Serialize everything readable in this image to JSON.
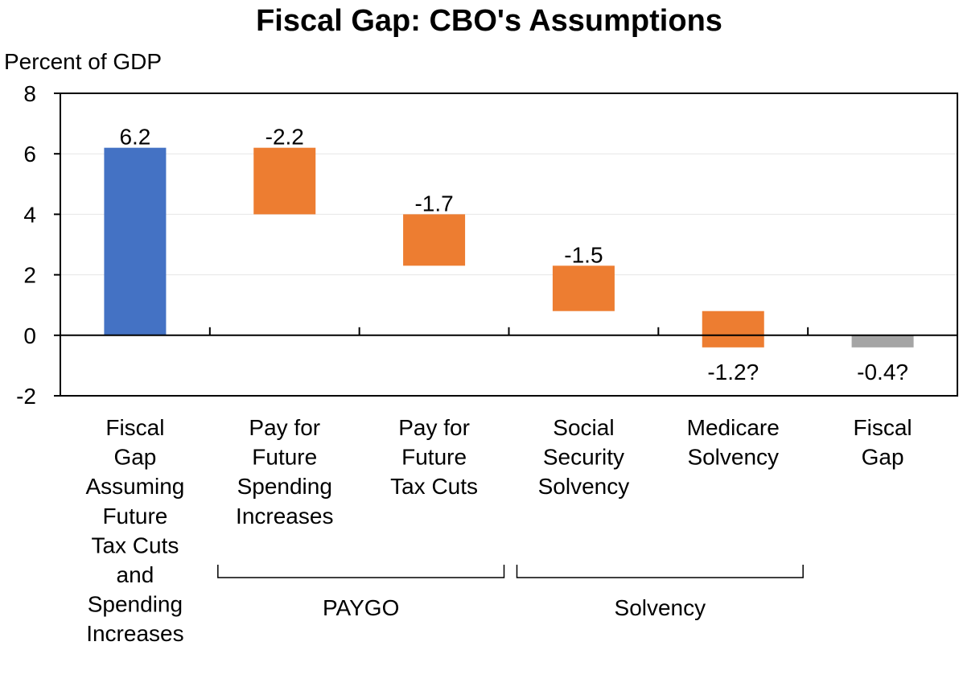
{
  "chart_data": {
    "type": "bar",
    "subtype": "waterfall",
    "title": "Fiscal Gap: CBO's Assumptions",
    "ylabel": "Percent of GDP",
    "ylim": [
      -2,
      8
    ],
    "yticks": [
      "8",
      "6",
      "4",
      "2",
      "0",
      "-2"
    ],
    "categories": [
      "Fiscal Gap Assuming Future Tax Cuts and Spending Increases",
      "Pay for Future Spending Increases",
      "Pay for Future Tax Cuts",
      "Social Security Solvency",
      "Medicare Solvency",
      "Fiscal Gap"
    ],
    "category_lines": [
      [
        "Fiscal",
        "Gap",
        "Assuming",
        "Future",
        "Tax Cuts",
        "and",
        "Spending",
        "Increases"
      ],
      [
        "Pay for",
        "Future",
        "Spending",
        "Increases"
      ],
      [
        "Pay for",
        "Future",
        "Tax Cuts"
      ],
      [
        "Social",
        "Security",
        "Solvency"
      ],
      [
        "Medicare",
        "Solvency"
      ],
      [
        "Fiscal",
        "Gap"
      ]
    ],
    "bars": [
      {
        "kind": "total",
        "start": 0,
        "end": 6.2,
        "label": "6.2",
        "color": "#4472C4"
      },
      {
        "kind": "change",
        "start": 6.2,
        "end": 4.0,
        "label": "-2.2",
        "color": "#ED7D31"
      },
      {
        "kind": "change",
        "start": 4.0,
        "end": 2.3,
        "label": "-1.7",
        "color": "#ED7D31"
      },
      {
        "kind": "change",
        "start": 2.3,
        "end": 0.8,
        "label": "-1.5",
        "color": "#ED7D31"
      },
      {
        "kind": "change",
        "start": 0.8,
        "end": -0.4,
        "label": "-1.2?",
        "color": "#ED7D31"
      },
      {
        "kind": "total",
        "start": 0,
        "end": -0.4,
        "label": "-0.4?",
        "color": "#A5A5A5"
      }
    ],
    "groups": [
      {
        "label": "PAYGO",
        "from": 1,
        "to": 2
      },
      {
        "label": "Solvency",
        "from": 3,
        "to": 4
      }
    ],
    "grid": true
  }
}
